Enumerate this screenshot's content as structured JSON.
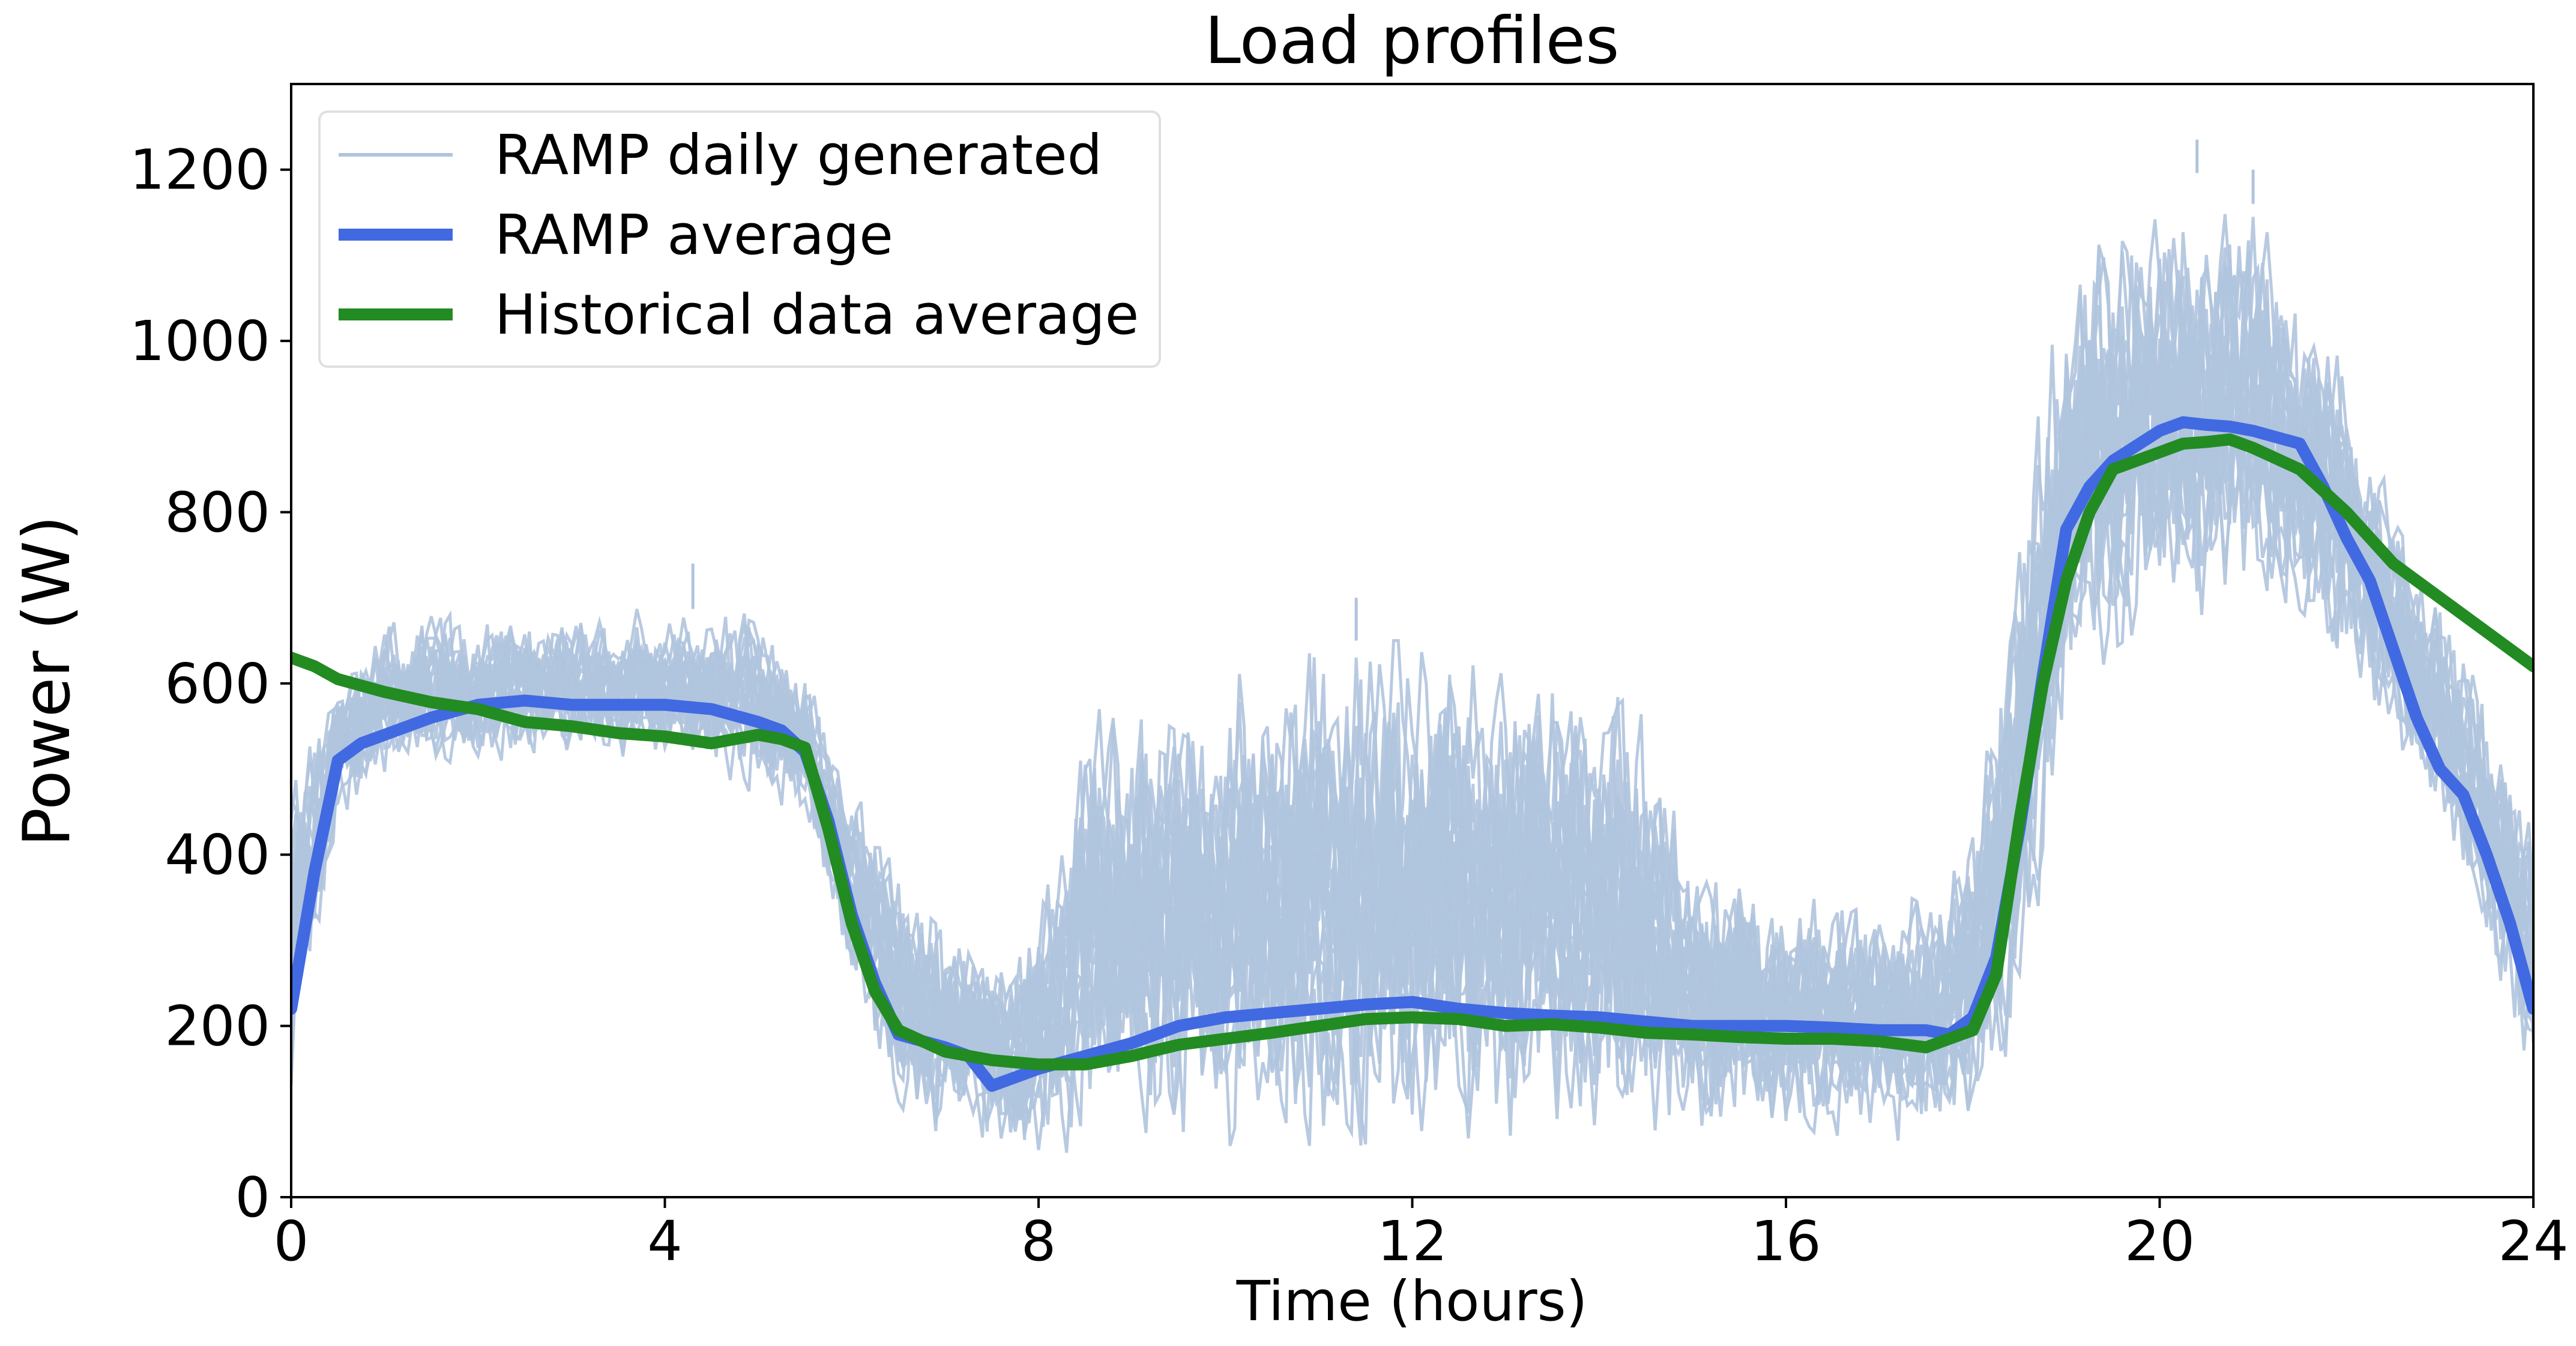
{
  "chart_data": {
    "type": "line",
    "title": "Load profiles",
    "xlabel": "Time (hours)",
    "ylabel": "Power (W)",
    "xlim": [
      0,
      24
    ],
    "ylim": [
      0,
      1300
    ],
    "xticks": [
      0,
      4,
      8,
      12,
      16,
      20,
      24
    ],
    "yticks": [
      0,
      200,
      400,
      600,
      800,
      1000,
      1200
    ],
    "grid": false,
    "legend_position": "top-left",
    "series": [
      {
        "name": "RAMP daily generated",
        "color": "#b0c4de",
        "kind": "envelope-band",
        "x": [
          0,
          0.5,
          1,
          1.5,
          2,
          3,
          4,
          5,
          5.5,
          6,
          6.5,
          7,
          7.5,
          8,
          8.5,
          9,
          10,
          11,
          12,
          13,
          14,
          14.5,
          15,
          16,
          17,
          17.5,
          18,
          18.5,
          19,
          19.5,
          20,
          20.5,
          21,
          21.5,
          22,
          22.5,
          23,
          23.5,
          24
        ],
        "low": [
          130,
          430,
          480,
          500,
          510,
          510,
          510,
          470,
          440,
          230,
          100,
          70,
          50,
          40,
          60,
          60,
          60,
          60,
          60,
          70,
          80,
          80,
          70,
          70,
          70,
          60,
          80,
          200,
          550,
          640,
          680,
          680,
          680,
          660,
          600,
          520,
          440,
          300,
          100
        ],
        "high": [
          480,
          630,
          670,
          680,
          680,
          680,
          690,
          680,
          620,
          490,
          400,
          330,
          310,
          330,
          560,
          600,
          620,
          650,
          650,
          640,
          600,
          560,
          400,
          360,
          350,
          360,
          420,
          800,
          1100,
          1150,
          1180,
          1200,
          1160,
          1050,
          1000,
          800,
          700,
          600,
          450
        ],
        "peaks": [
          {
            "x": 4.3,
            "y": 740
          },
          {
            "x": 11.4,
            "y": 700
          },
          {
            "x": 20.4,
            "y": 1235
          },
          {
            "x": 21.0,
            "y": 1200
          }
        ]
      },
      {
        "name": "RAMP average",
        "color": "#4169e1",
        "x": [
          0,
          0.25,
          0.5,
          0.75,
          1,
          1.5,
          2,
          2.5,
          3,
          3.5,
          4,
          4.5,
          5,
          5.25,
          5.5,
          5.75,
          6,
          6.25,
          6.5,
          7,
          7.25,
          7.5,
          7.75,
          8,
          8.5,
          9,
          9.5,
          10,
          10.5,
          11,
          11.5,
          12,
          12.5,
          13,
          13.5,
          14,
          14.5,
          15,
          15.5,
          16,
          16.5,
          17,
          17.5,
          17.75,
          18,
          18.25,
          18.5,
          18.75,
          19,
          19.25,
          19.5,
          20,
          20.25,
          20.5,
          20.75,
          21,
          21.5,
          21.75,
          22,
          22.25,
          22.5,
          22.75,
          23,
          23.25,
          23.5,
          23.75,
          24
        ],
        "y": [
          220,
          380,
          510,
          530,
          540,
          560,
          575,
          580,
          575,
          575,
          575,
          570,
          555,
          545,
          520,
          440,
          330,
          250,
          190,
          175,
          165,
          130,
          140,
          150,
          165,
          180,
          200,
          210,
          215,
          220,
          225,
          228,
          220,
          215,
          212,
          210,
          205,
          200,
          200,
          200,
          198,
          195,
          195,
          190,
          210,
          280,
          430,
          610,
          780,
          830,
          860,
          895,
          905,
          902,
          900,
          895,
          880,
          830,
          770,
          720,
          640,
          560,
          500,
          470,
          400,
          320,
          220
        ]
      },
      {
        "name": "Historical data average",
        "color": "#228b22",
        "x": [
          0,
          0.25,
          0.5,
          1,
          1.5,
          2,
          2.5,
          3,
          3.5,
          4,
          4.5,
          5,
          5.25,
          5.5,
          5.75,
          6,
          6.25,
          6.5,
          7,
          7.5,
          8,
          8.5,
          9,
          9.5,
          10,
          10.5,
          11,
          11.5,
          12,
          12.5,
          13,
          13.5,
          14,
          14.5,
          15,
          15.5,
          16,
          16.5,
          17,
          17.5,
          17.75,
          18,
          18.25,
          18.5,
          18.75,
          19,
          19.25,
          19.5,
          20,
          20.25,
          20.5,
          20.75,
          21,
          21.5,
          22,
          22.5,
          23,
          23.5,
          24
        ],
        "y": [
          630,
          620,
          605,
          590,
          578,
          570,
          555,
          550,
          542,
          538,
          530,
          540,
          535,
          525,
          430,
          320,
          240,
          195,
          170,
          160,
          155,
          155,
          165,
          178,
          185,
          192,
          200,
          208,
          210,
          208,
          200,
          202,
          198,
          192,
          190,
          187,
          185,
          185,
          182,
          175,
          185,
          195,
          260,
          440,
          600,
          720,
          800,
          850,
          870,
          880,
          882,
          885,
          875,
          850,
          800,
          740,
          700,
          660,
          620
        ]
      }
    ]
  }
}
